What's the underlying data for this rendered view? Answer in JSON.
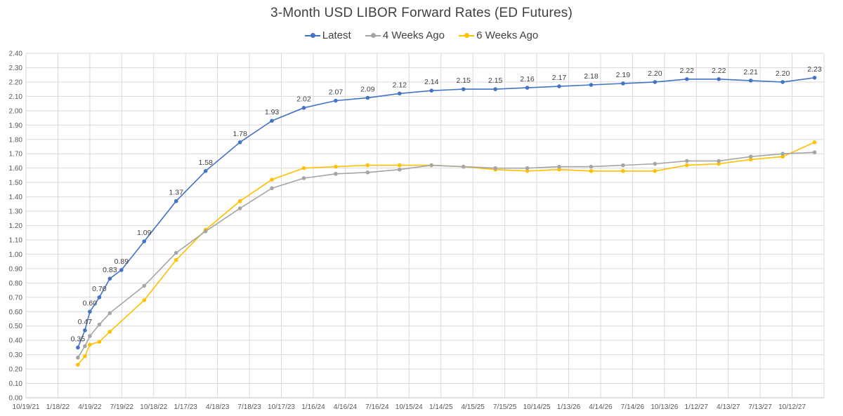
{
  "chart_data": {
    "type": "line",
    "title": "3-Month USD LIBOR Forward Rates (ED Futures)",
    "xlabel": "",
    "ylabel": "",
    "ylim": [
      0,
      2.4
    ],
    "y_ticks": [
      "0.00",
      "0.10",
      "0.20",
      "0.30",
      "0.40",
      "0.50",
      "0.60",
      "0.70",
      "0.80",
      "0.90",
      "1.00",
      "1.10",
      "1.20",
      "1.30",
      "1.40",
      "1.50",
      "1.60",
      "1.70",
      "1.80",
      "1.90",
      "2.00",
      "2.10",
      "2.20",
      "2.30",
      "2.40"
    ],
    "x_ticks": [
      "10/19/21",
      "1/18/22",
      "4/19/22",
      "7/19/22",
      "10/18/22",
      "1/17/23",
      "4/18/23",
      "7/18/23",
      "10/17/23",
      "1/16/24",
      "4/16/24",
      "7/16/24",
      "10/15/24",
      "1/14/25",
      "4/15/25",
      "7/15/25",
      "10/14/25",
      "1/13/26",
      "4/14/26",
      "7/14/26",
      "10/13/26",
      "1/12/27",
      "4/13/27",
      "7/13/27",
      "10/12/27"
    ],
    "x": [
      "2022-03-16",
      "2022-04-05",
      "2022-04-19",
      "2022-05-16",
      "2022-06-15",
      "2022-07-18",
      "2022-09-21",
      "2022-12-21",
      "2023-03-15",
      "2023-06-21",
      "2023-09-20",
      "2023-12-20",
      "2024-03-20",
      "2024-06-19",
      "2024-09-18",
      "2024-12-18",
      "2025-03-19",
      "2025-06-18",
      "2025-09-17",
      "2025-12-17",
      "2026-03-18",
      "2026-06-17",
      "2026-09-16",
      "2026-12-16",
      "2027-03-17",
      "2027-06-16",
      "2027-09-15",
      "2027-12-15"
    ],
    "grid": true,
    "legend_position": "top",
    "series": [
      {
        "name": "Latest",
        "color": "#4472C4",
        "values": [
          0.35,
          0.47,
          0.6,
          0.7,
          0.83,
          0.89,
          1.09,
          1.37,
          1.58,
          1.78,
          1.93,
          2.02,
          2.07,
          2.09,
          2.12,
          2.14,
          2.15,
          2.15,
          2.16,
          2.17,
          2.18,
          2.19,
          2.2,
          2.22,
          2.22,
          2.21,
          2.2,
          2.23
        ],
        "labels": [
          "0.35",
          "0.47",
          "0.60",
          "0.70",
          "0.83",
          "0.89",
          "1.09",
          "1.37",
          "1.58",
          "1.78",
          "1.93",
          "2.02",
          "2.07",
          "2.09",
          "2.12",
          "2.14",
          "2.15",
          "2.15",
          "2.16",
          "2.17",
          "2.18",
          "2.19",
          "2.20",
          "2.22",
          "2.22",
          "2.21",
          "2.20",
          "2.23"
        ]
      },
      {
        "name": "4 Weeks Ago",
        "color": "#A5A5A5",
        "values": [
          0.28,
          0.36,
          0.43,
          0.51,
          0.59,
          null,
          0.78,
          1.01,
          1.16,
          1.32,
          1.46,
          1.53,
          1.56,
          1.57,
          1.59,
          1.62,
          1.61,
          1.6,
          1.6,
          1.61,
          1.61,
          1.62,
          1.63,
          1.65,
          1.65,
          1.68,
          1.7,
          1.71
        ]
      },
      {
        "name": "6 Weeks Ago",
        "color": "#FFC000",
        "values": [
          0.23,
          0.29,
          0.37,
          0.39,
          0.46,
          null,
          0.68,
          0.96,
          1.17,
          1.37,
          1.52,
          1.6,
          1.61,
          1.62,
          1.62,
          1.62,
          1.61,
          1.59,
          1.58,
          1.59,
          1.58,
          1.58,
          1.58,
          1.62,
          1.63,
          1.66,
          1.68,
          1.78
        ]
      }
    ]
  }
}
